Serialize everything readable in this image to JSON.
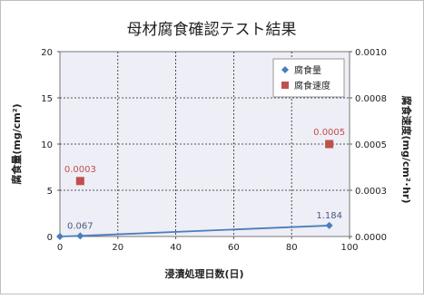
{
  "chart_data": {
    "type": "scatter",
    "title": "母材腐食確認テスト結果",
    "xlabel": "浸漬処理日数(日)",
    "ylabel": "腐食量(mg/cm²)",
    "y2label": "腐食速度(mg/cm²･hr)",
    "xlim": [
      0,
      100
    ],
    "ylim": [
      0,
      20
    ],
    "y2lim": [
      0,
      0.001
    ],
    "x_ticks": [
      "0",
      "20",
      "40",
      "60",
      "80",
      "100"
    ],
    "y_ticks": [
      "0",
      "5",
      "10",
      "15",
      "20"
    ],
    "y2_ticks": [
      "0.0000",
      "0.0003",
      "0.0005",
      "0.0008",
      "0.0010"
    ],
    "grid": true,
    "legend_position": "top-right",
    "series": [
      {
        "name": "腐食量",
        "axis": "left",
        "mark": "line-diamond",
        "color": "#4a7ebb",
        "x": [
          0,
          7,
          93
        ],
        "y": [
          0,
          0.067,
          1.184
        ],
        "labels": [
          "",
          "0.067",
          "1.184"
        ]
      },
      {
        "name": "腐食速度",
        "axis": "right",
        "mark": "square",
        "color": "#c0504d",
        "x": [
          7,
          93
        ],
        "y": [
          0.0003,
          0.0005
        ],
        "labels": [
          "0.0003",
          "0.0005"
        ]
      }
    ]
  }
}
